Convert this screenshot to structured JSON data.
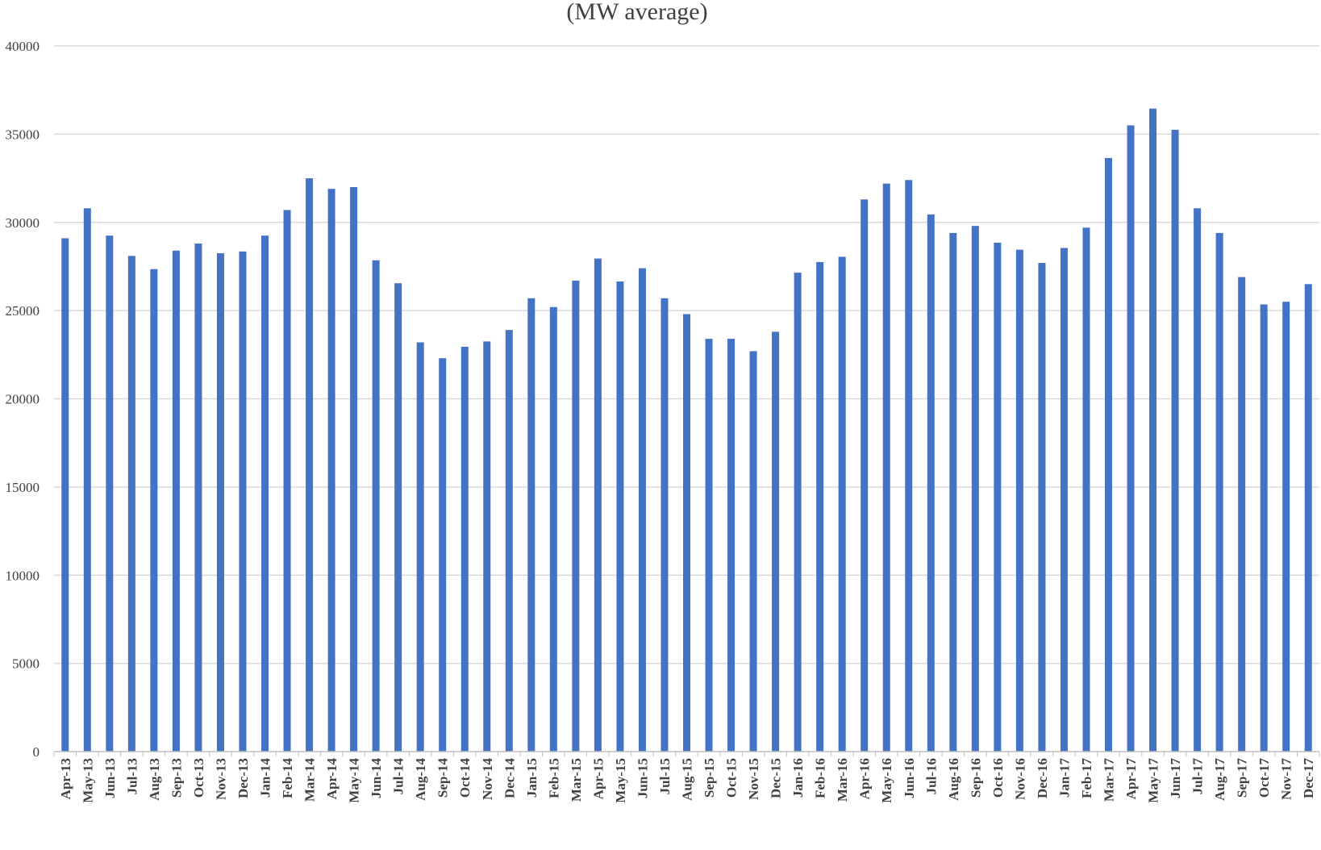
{
  "chart_data": {
    "type": "bar",
    "title": "(MW average)",
    "ylim": [
      0,
      40000
    ],
    "yticks": [
      0,
      5000,
      10000,
      15000,
      20000,
      25000,
      30000,
      35000,
      40000
    ],
    "grid": true,
    "bar_color": "#4472C4",
    "categories": [
      "Apr-13",
      "May-13",
      "Jun-13",
      "Jul-13",
      "Aug-13",
      "Sep-13",
      "Oct-13",
      "Nov-13",
      "Dec-13",
      "Jan-14",
      "Feb-14",
      "Mar-14",
      "Apr-14",
      "May-14",
      "Jun-14",
      "Jul-14",
      "Aug-14",
      "Sep-14",
      "Oct-14",
      "Nov-14",
      "Dec-14",
      "Jan-15",
      "Feb-15",
      "Mar-15",
      "Apr-15",
      "May-15",
      "Jun-15",
      "Jul-15",
      "Aug-15",
      "Sep-15",
      "Oct-15",
      "Nov-15",
      "Dec-15",
      "Jan-16",
      "Feb-16",
      "Mar-16",
      "Apr-16",
      "May-16",
      "Jun-16",
      "Jul-16",
      "Aug-16",
      "Sep-16",
      "Oct-16",
      "Nov-16",
      "Dec-16",
      "Jan-17",
      "Feb-17",
      "Mar-17",
      "Apr-17",
      "May-17",
      "Jun-17",
      "Jul-17",
      "Aug-17",
      "Sep-17",
      "Oct-17",
      "Nov-17",
      "Dec-17"
    ],
    "values": [
      29100,
      30800,
      29250,
      28100,
      27350,
      28400,
      28800,
      28250,
      28350,
      29250,
      30700,
      32500,
      31900,
      32000,
      27850,
      26550,
      23200,
      22300,
      22950,
      23250,
      23900,
      25700,
      25200,
      26700,
      27950,
      26650,
      27400,
      25700,
      24800,
      23400,
      23400,
      22700,
      23800,
      27150,
      27750,
      28050,
      31300,
      32200,
      32400,
      30450,
      29400,
      29800,
      28850,
      28450,
      27700,
      28550,
      29700,
      33650,
      35500,
      36450,
      35250,
      30800,
      29400,
      26900,
      25350,
      25500,
      26500
    ]
  }
}
